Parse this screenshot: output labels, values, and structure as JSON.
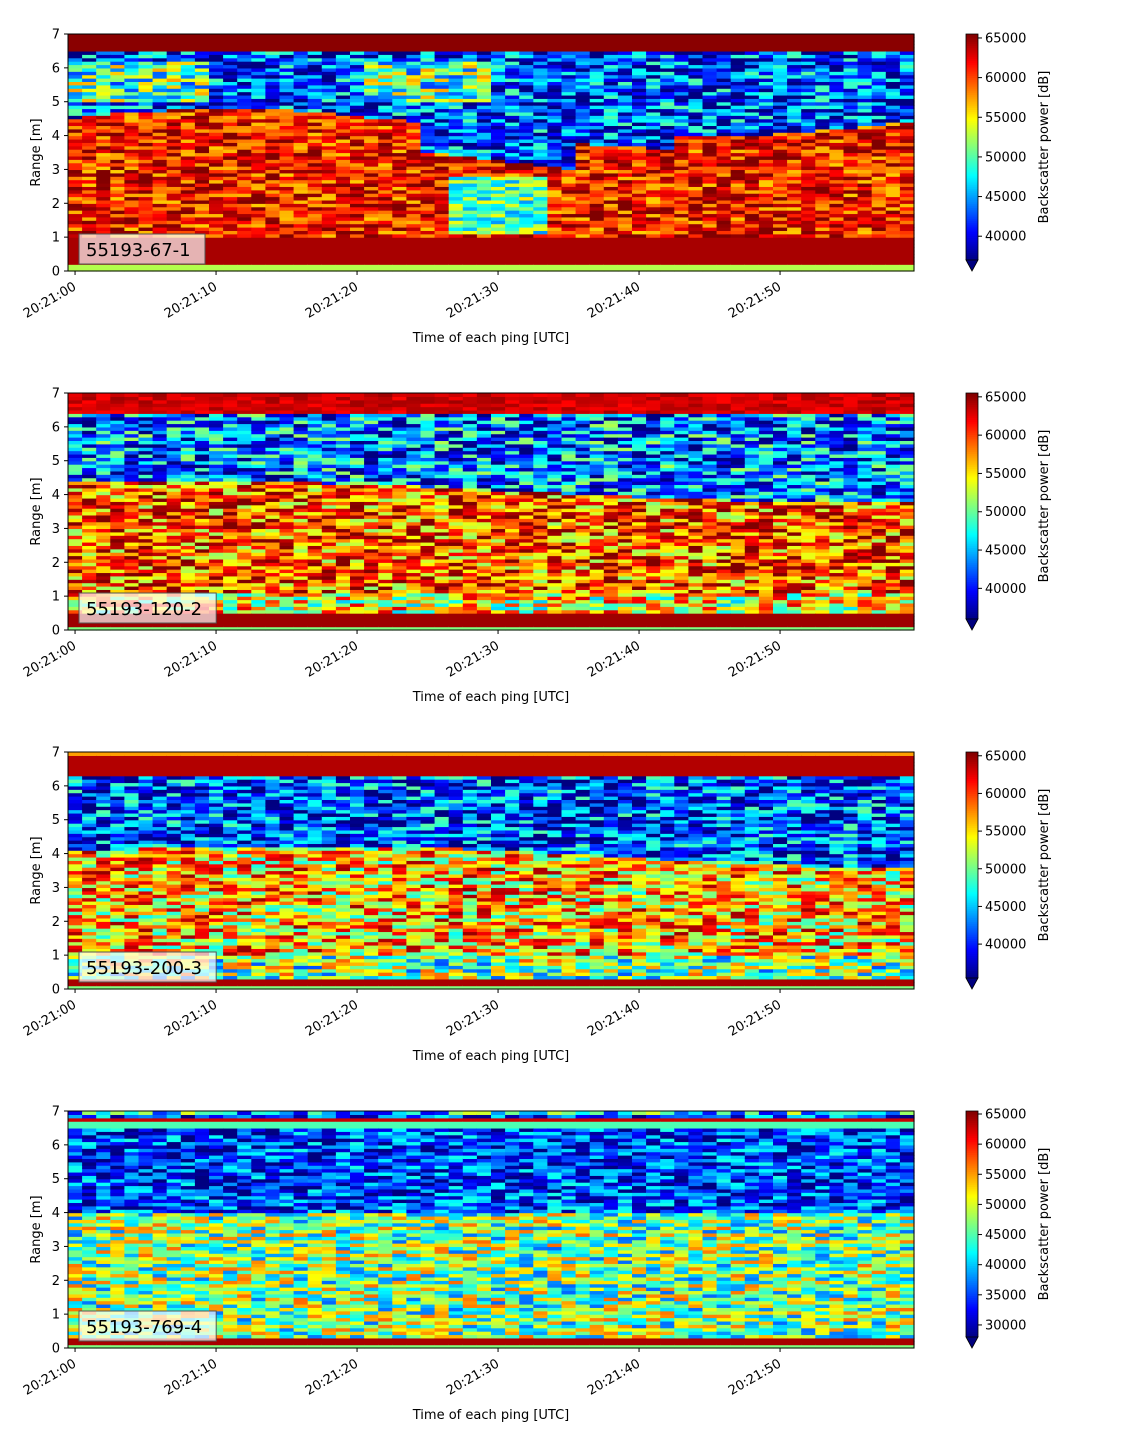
{
  "chart_data": [
    {
      "type": "heatmap",
      "panel_label": "55193-67-1",
      "xlabel": "Time of each ping [UTC]",
      "ylabel": "Range [m]",
      "x_ticks": [
        "20:21:00",
        "20:21:10",
        "20:21:20",
        "20:21:30",
        "20:21:40",
        "20:21:50"
      ],
      "x_tick_seconds": [
        0,
        10,
        20,
        30,
        40,
        50
      ],
      "xlim_seconds": [
        -0.5,
        59.5
      ],
      "ylim": [
        0,
        7
      ],
      "y_ticks": [
        0,
        1,
        2,
        3,
        4,
        5,
        6,
        7
      ],
      "colorbar_label": "Backscatter power [dB]",
      "colorbar_ticks": [
        40000,
        45000,
        50000,
        55000,
        60000,
        65000
      ],
      "color_range": [
        37000,
        65500
      ],
      "colorbar_extend": "min",
      "colormap": "jet",
      "grid": false
    },
    {
      "type": "heatmap",
      "panel_label": "55193-120-2",
      "xlabel": "Time of each ping [UTC]",
      "ylabel": "Range [m]",
      "x_ticks": [
        "20:21:00",
        "20:21:10",
        "20:21:20",
        "20:21:30",
        "20:21:40",
        "20:21:50"
      ],
      "x_tick_seconds": [
        0,
        10,
        20,
        30,
        40,
        50
      ],
      "xlim_seconds": [
        -0.5,
        59.5
      ],
      "ylim": [
        0,
        7
      ],
      "y_ticks": [
        0,
        1,
        2,
        3,
        4,
        5,
        6,
        7
      ],
      "colorbar_label": "Backscatter power [dB]",
      "colorbar_ticks": [
        40000,
        45000,
        50000,
        55000,
        60000,
        65000
      ],
      "color_range": [
        36000,
        65500
      ],
      "colorbar_extend": "min",
      "colormap": "jet",
      "grid": false
    },
    {
      "type": "heatmap",
      "panel_label": "55193-200-3",
      "xlabel": "Time of each ping [UTC]",
      "ylabel": "Range [m]",
      "x_ticks": [
        "20:21:00",
        "20:21:10",
        "20:21:20",
        "20:21:30",
        "20:21:40",
        "20:21:50"
      ],
      "x_tick_seconds": [
        0,
        10,
        20,
        30,
        40,
        50
      ],
      "xlim_seconds": [
        -0.5,
        59.5
      ],
      "ylim": [
        0,
        7
      ],
      "y_ticks": [
        0,
        1,
        2,
        3,
        4,
        5,
        6,
        7
      ],
      "colorbar_label": "Backscatter power [dB]",
      "colorbar_ticks": [
        40000,
        45000,
        50000,
        55000,
        60000,
        65000
      ],
      "color_range": [
        35500,
        65500
      ],
      "colorbar_extend": "min",
      "colormap": "jet",
      "grid": false
    },
    {
      "type": "heatmap",
      "panel_label": "55193-769-4",
      "xlabel": "Time of each ping [UTC]",
      "ylabel": "Range [m]",
      "x_ticks": [
        "20:21:00",
        "20:21:10",
        "20:21:20",
        "20:21:30",
        "20:21:40",
        "20:21:50"
      ],
      "x_tick_seconds": [
        0,
        10,
        20,
        30,
        40,
        50
      ],
      "xlim_seconds": [
        -0.5,
        59.5
      ],
      "ylim": [
        0,
        7
      ],
      "y_ticks": [
        0,
        1,
        2,
        3,
        4,
        5,
        6,
        7
      ],
      "colorbar_label": "Backscatter power [dB]",
      "colorbar_ticks": [
        30000,
        35000,
        40000,
        45000,
        50000,
        55000,
        60000,
        65000
      ],
      "color_range": [
        28000,
        65500
      ],
      "colorbar_extend": "min",
      "colormap": "jet",
      "grid": false
    }
  ]
}
